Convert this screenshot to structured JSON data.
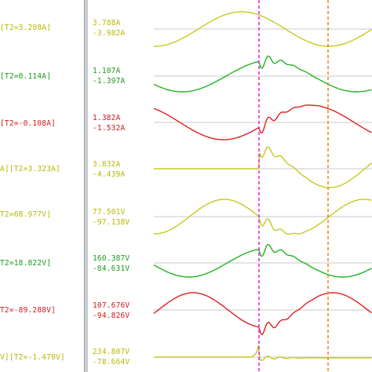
{
  "channels": [
    {
      "label": "[T2=3.208A]",
      "max": "3.788A",
      "min": "-3.982A",
      "color": "#c8c820"
    },
    {
      "label": "[T2=0.114A]",
      "max": "1.107A",
      "min": "-1.397A",
      "color": "#22b322"
    },
    {
      "label": "[T2=-0.108A]",
      "max": "1.382A",
      "min": "-1.532A",
      "color": "#e02020"
    },
    {
      "label": "A][T2=3.323A]",
      "max": "3.832A",
      "min": "-4.439A",
      "color": "#c8c820"
    },
    {
      "label": "T2=68.977V]",
      "max": "77.501V",
      "min": "-97.138V",
      "color": "#c8c820"
    },
    {
      "label": "T2=18.822V]",
      "max": "160.387V",
      "min": "-84.631V",
      "color": "#22b322"
    },
    {
      "label": "T2=-89.288V]",
      "max": "107.676V",
      "min": "-94.826V",
      "color": "#e02020"
    },
    {
      "label": "V][T2=-1.470V]",
      "max": "234.807V",
      "min": "-78.664V",
      "color": "#c8c820"
    }
  ],
  "cursors": {
    "t1_color": "#e020e0",
    "t2_color": "#f08010"
  }
}
